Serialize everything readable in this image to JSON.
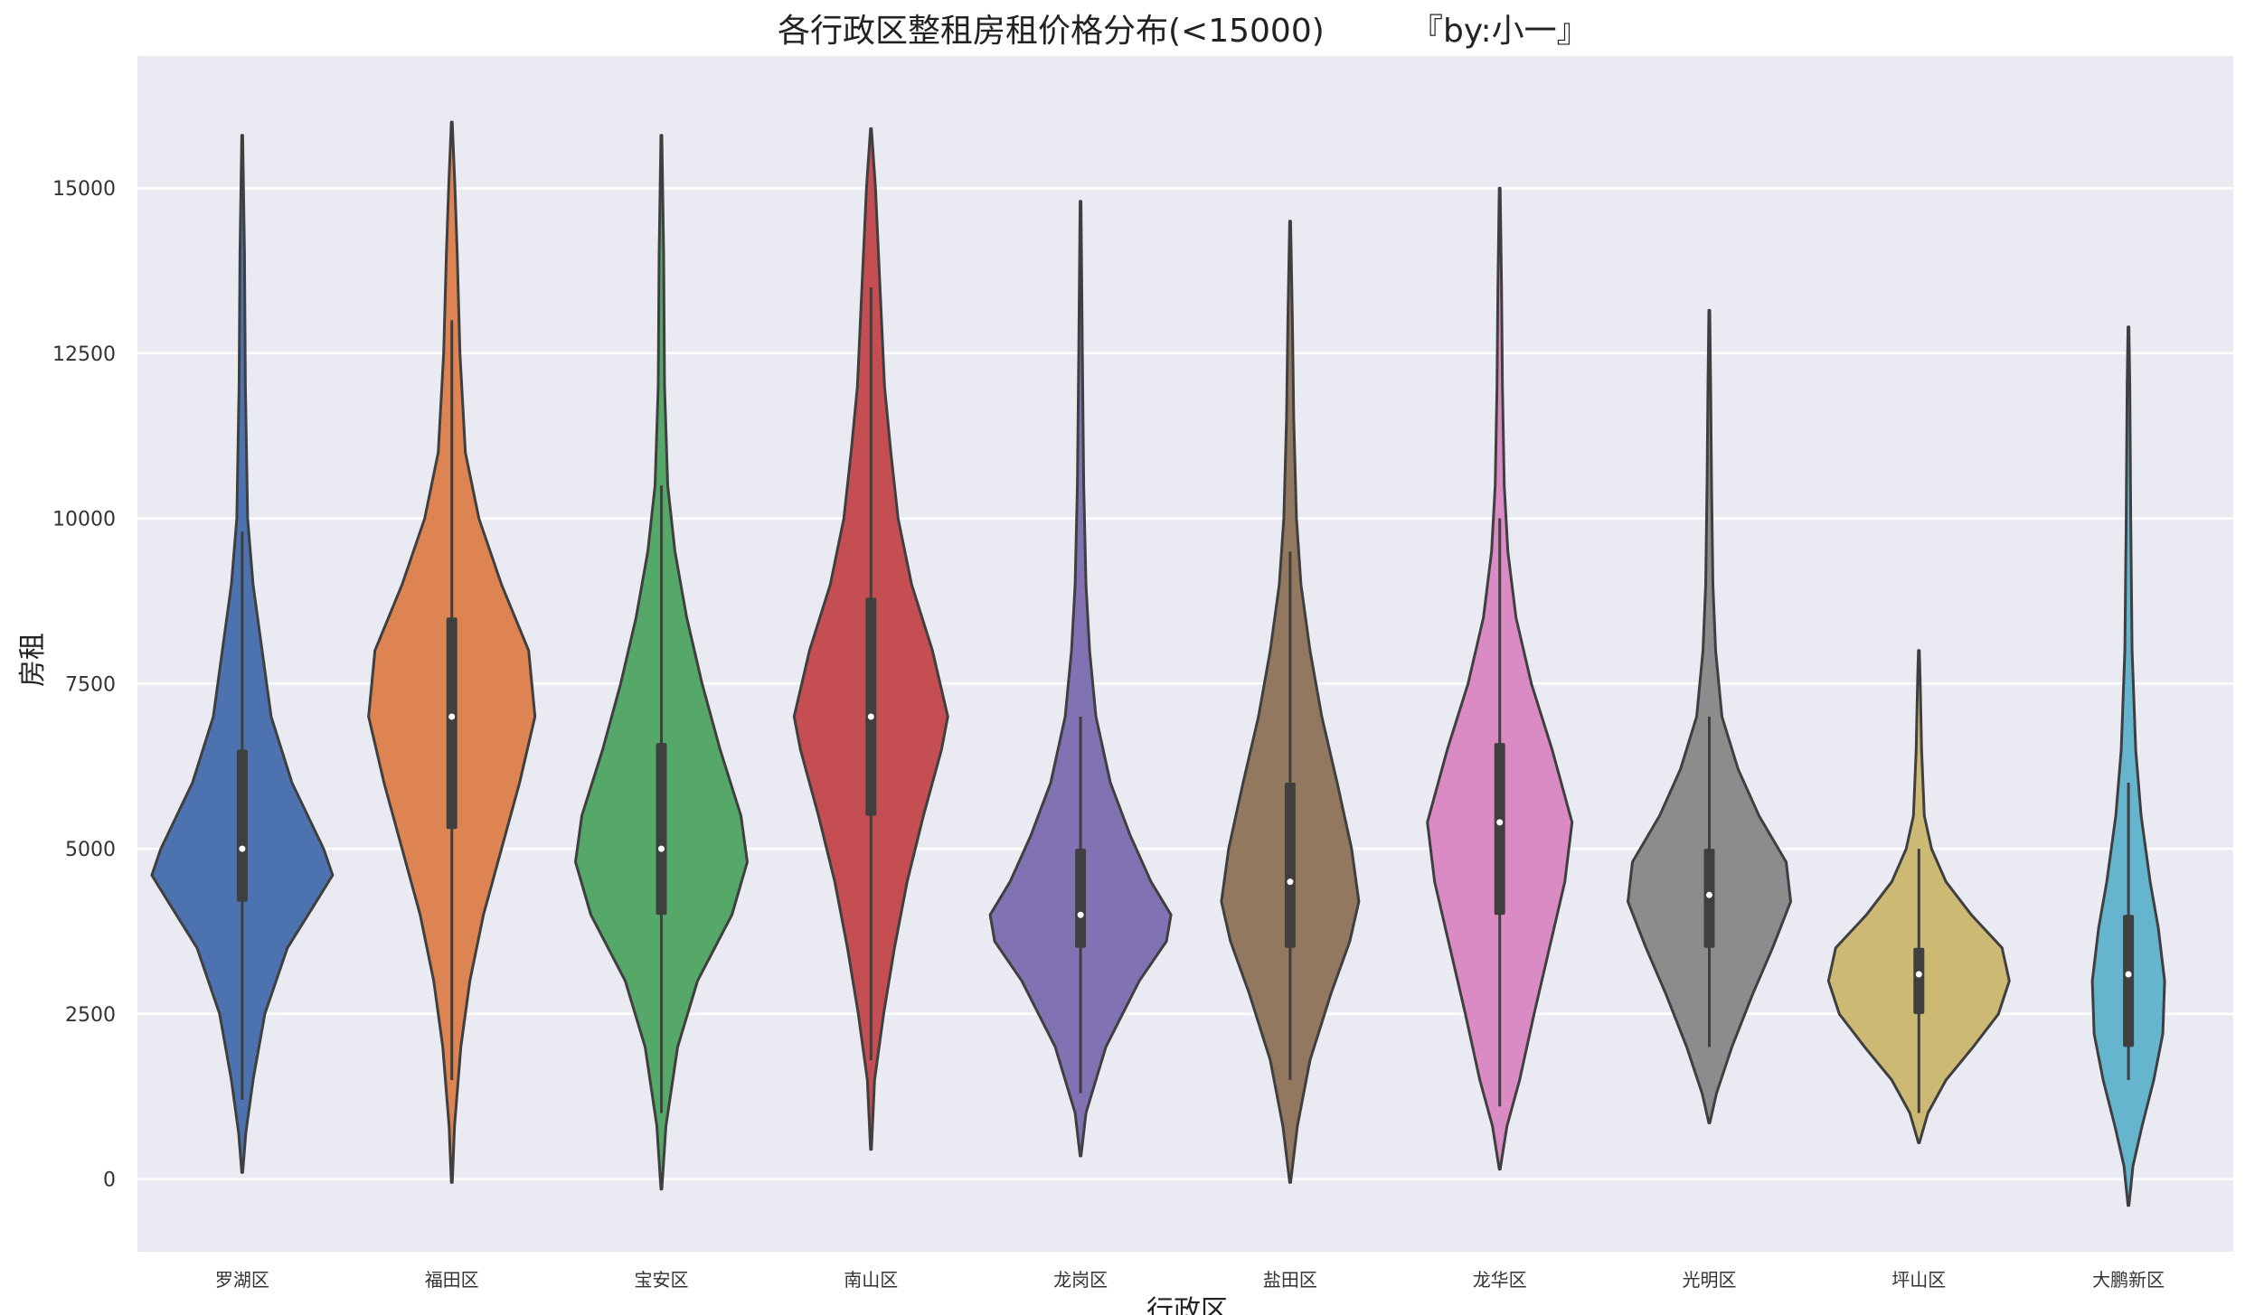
{
  "chart_data": {
    "type": "violin",
    "title": "各行政区整租房租价格分布(<15000)",
    "credit": "『by:小一』",
    "xlabel": "行政区",
    "ylabel": "房租",
    "ylim": [
      -1100,
      17000
    ],
    "yticks": [
      0,
      2500,
      5000,
      7500,
      10000,
      12500,
      15000
    ],
    "grid": true,
    "background": "#EAEAF2",
    "series": [
      {
        "category": "罗湖区",
        "color": "#4C72B0",
        "min": 100,
        "max": 15800,
        "q1": 4200,
        "median": 5000,
        "q3": 6500,
        "whisker_low": 1200,
        "whisker_high": 9800,
        "density": [
          [
            100,
            0.005
          ],
          [
            700,
            0.04
          ],
          [
            1500,
            0.12
          ],
          [
            2500,
            0.25
          ],
          [
            3500,
            0.5
          ],
          [
            4200,
            0.82
          ],
          [
            4600,
            1.0
          ],
          [
            5000,
            0.9
          ],
          [
            6000,
            0.55
          ],
          [
            7000,
            0.32
          ],
          [
            8000,
            0.22
          ],
          [
            9000,
            0.12
          ],
          [
            10000,
            0.06
          ],
          [
            12000,
            0.035
          ],
          [
            14000,
            0.025
          ],
          [
            15800,
            0.005
          ]
        ]
      },
      {
        "category": "福田区",
        "color": "#DD8452",
        "min": -50,
        "max": 16000,
        "q1": 5300,
        "median": 7000,
        "q3": 8500,
        "whisker_low": 1500,
        "whisker_high": 13000,
        "density": [
          [
            -50,
            0.005
          ],
          [
            800,
            0.03
          ],
          [
            2000,
            0.1
          ],
          [
            3000,
            0.2
          ],
          [
            4000,
            0.35
          ],
          [
            5000,
            0.55
          ],
          [
            6000,
            0.75
          ],
          [
            7000,
            0.92
          ],
          [
            8000,
            0.85
          ],
          [
            9000,
            0.55
          ],
          [
            10000,
            0.3
          ],
          [
            11000,
            0.15
          ],
          [
            12500,
            0.09
          ],
          [
            14000,
            0.06
          ],
          [
            15000,
            0.035
          ],
          [
            16000,
            0.005
          ]
        ]
      },
      {
        "category": "宝安区",
        "color": "#55A868",
        "min": -150,
        "max": 15800,
        "q1": 4000,
        "median": 5000,
        "q3": 6600,
        "whisker_low": 1000,
        "whisker_high": 10500,
        "density": [
          [
            -150,
            0.005
          ],
          [
            800,
            0.05
          ],
          [
            2000,
            0.18
          ],
          [
            3000,
            0.4
          ],
          [
            4000,
            0.78
          ],
          [
            4800,
            0.95
          ],
          [
            5500,
            0.88
          ],
          [
            6500,
            0.65
          ],
          [
            7500,
            0.45
          ],
          [
            8500,
            0.28
          ],
          [
            9500,
            0.15
          ],
          [
            10500,
            0.07
          ],
          [
            12000,
            0.035
          ],
          [
            14000,
            0.025
          ],
          [
            15800,
            0.005
          ]
        ]
      },
      {
        "category": "南山区",
        "color": "#C44E52",
        "min": 450,
        "max": 15900,
        "q1": 5500,
        "median": 7000,
        "q3": 8800,
        "whisker_low": 1800,
        "whisker_high": 13500,
        "density": [
          [
            450,
            0.005
          ],
          [
            1500,
            0.04
          ],
          [
            2500,
            0.14
          ],
          [
            3500,
            0.26
          ],
          [
            4500,
            0.4
          ],
          [
            5500,
            0.58
          ],
          [
            6500,
            0.78
          ],
          [
            7000,
            0.85
          ],
          [
            8000,
            0.68
          ],
          [
            9000,
            0.45
          ],
          [
            10000,
            0.3
          ],
          [
            11000,
            0.22
          ],
          [
            12000,
            0.15
          ],
          [
            13500,
            0.1
          ],
          [
            15000,
            0.05
          ],
          [
            15900,
            0.005
          ]
        ]
      },
      {
        "category": "龙岗区",
        "color": "#8172B3",
        "min": 350,
        "max": 14800,
        "q1": 3500,
        "median": 4000,
        "q3": 5000,
        "whisker_low": 1300,
        "whisker_high": 7000,
        "density": [
          [
            350,
            0.005
          ],
          [
            1000,
            0.06
          ],
          [
            2000,
            0.28
          ],
          [
            3000,
            0.65
          ],
          [
            3600,
            0.95
          ],
          [
            4000,
            1.0
          ],
          [
            4500,
            0.78
          ],
          [
            5200,
            0.55
          ],
          [
            6000,
            0.33
          ],
          [
            7000,
            0.17
          ],
          [
            8000,
            0.1
          ],
          [
            9000,
            0.06
          ],
          [
            10500,
            0.035
          ],
          [
            12500,
            0.02
          ],
          [
            14800,
            0.005
          ]
        ]
      },
      {
        "category": "盐田区",
        "color": "#937860",
        "min": -50,
        "max": 14500,
        "q1": 3500,
        "median": 4500,
        "q3": 6000,
        "whisker_low": 1500,
        "whisker_high": 9500,
        "density": [
          [
            -50,
            0.005
          ],
          [
            800,
            0.08
          ],
          [
            1800,
            0.22
          ],
          [
            2800,
            0.45
          ],
          [
            3600,
            0.66
          ],
          [
            4200,
            0.76
          ],
          [
            5000,
            0.68
          ],
          [
            6000,
            0.52
          ],
          [
            7000,
            0.35
          ],
          [
            8000,
            0.22
          ],
          [
            9000,
            0.12
          ],
          [
            10000,
            0.07
          ],
          [
            11500,
            0.04
          ],
          [
            13000,
            0.025
          ],
          [
            14500,
            0.005
          ]
        ]
      },
      {
        "category": "龙华区",
        "color": "#DA8BC3",
        "min": 150,
        "max": 15000,
        "q1": 4000,
        "median": 5400,
        "q3": 6600,
        "whisker_low": 1100,
        "whisker_high": 10000,
        "density": [
          [
            150,
            0.005
          ],
          [
            800,
            0.08
          ],
          [
            1500,
            0.22
          ],
          [
            2500,
            0.38
          ],
          [
            3500,
            0.55
          ],
          [
            4500,
            0.72
          ],
          [
            5400,
            0.8
          ],
          [
            6500,
            0.58
          ],
          [
            7500,
            0.35
          ],
          [
            8500,
            0.18
          ],
          [
            9500,
            0.09
          ],
          [
            10500,
            0.05
          ],
          [
            12000,
            0.03
          ],
          [
            13500,
            0.02
          ],
          [
            15000,
            0.005
          ]
        ]
      },
      {
        "category": "光明区",
        "color": "#8C8C8C",
        "min": 850,
        "max": 13150,
        "q1": 3500,
        "median": 4300,
        "q3": 5000,
        "whisker_low": 2000,
        "whisker_high": 7000,
        "density": [
          [
            850,
            0.005
          ],
          [
            1300,
            0.08
          ],
          [
            2000,
            0.25
          ],
          [
            2800,
            0.48
          ],
          [
            3500,
            0.7
          ],
          [
            4200,
            0.9
          ],
          [
            4800,
            0.85
          ],
          [
            5500,
            0.55
          ],
          [
            6200,
            0.32
          ],
          [
            7000,
            0.14
          ],
          [
            8000,
            0.07
          ],
          [
            9000,
            0.04
          ],
          [
            10500,
            0.025
          ],
          [
            12000,
            0.015
          ],
          [
            13150,
            0.005
          ]
        ]
      },
      {
        "category": "坪山区",
        "color": "#CCB974",
        "min": 550,
        "max": 8000,
        "q1": 2500,
        "median": 3100,
        "q3": 3500,
        "whisker_low": 1000,
        "whisker_high": 5000,
        "density": [
          [
            550,
            0.005
          ],
          [
            1000,
            0.1
          ],
          [
            1500,
            0.3
          ],
          [
            2000,
            0.6
          ],
          [
            2500,
            0.88
          ],
          [
            3000,
            1.0
          ],
          [
            3500,
            0.92
          ],
          [
            4000,
            0.58
          ],
          [
            4500,
            0.3
          ],
          [
            5000,
            0.14
          ],
          [
            5500,
            0.06
          ],
          [
            6500,
            0.03
          ],
          [
            7500,
            0.015
          ],
          [
            8000,
            0.005
          ]
        ]
      },
      {
        "category": "大鹏新区",
        "color": "#64B5CD",
        "min": -400,
        "max": 12900,
        "q1": 2000,
        "median": 3100,
        "q3": 4000,
        "whisker_low": 1500,
        "whisker_high": 6000,
        "density": [
          [
            -400,
            0.005
          ],
          [
            200,
            0.05
          ],
          [
            800,
            0.15
          ],
          [
            1500,
            0.28
          ],
          [
            2200,
            0.38
          ],
          [
            3000,
            0.4
          ],
          [
            3800,
            0.33
          ],
          [
            4500,
            0.24
          ],
          [
            5500,
            0.14
          ],
          [
            6500,
            0.08
          ],
          [
            8000,
            0.04
          ],
          [
            10000,
            0.025
          ],
          [
            12000,
            0.015
          ],
          [
            12900,
            0.005
          ]
        ]
      }
    ]
  }
}
